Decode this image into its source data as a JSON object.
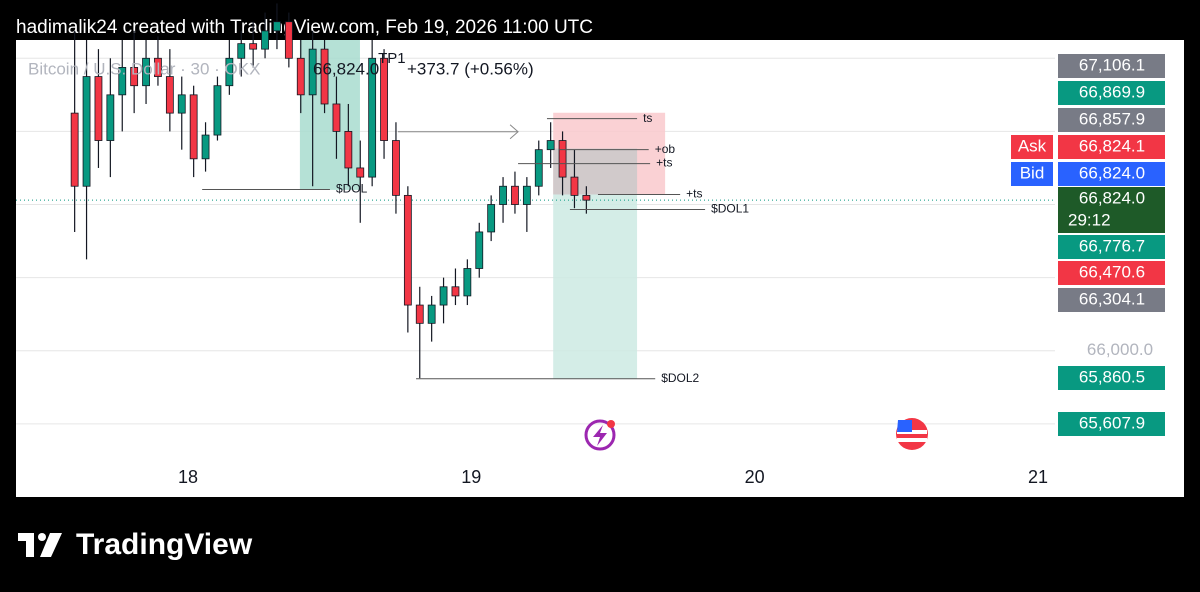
{
  "header": {
    "text": "hadimalik24 created with TradingView.com, Feb 19, 2026 11:00 UTC"
  },
  "chart_data": {
    "type": "candlestick",
    "legend": {
      "symbol": "Bitcoin / U.S. Dollar · 30 · OKX",
      "last": "66,824.0",
      "change": "+373.7 (+0.56%)"
    },
    "x": [
      17.6,
      17.642,
      17.684,
      17.726,
      17.768,
      17.81,
      17.852,
      17.894,
      17.936,
      17.978,
      18.02,
      18.062,
      18.104,
      18.146,
      18.188,
      18.23,
      18.272,
      18.314,
      18.356,
      18.398,
      18.44,
      18.482,
      18.524,
      18.566,
      18.608,
      18.65,
      18.692,
      18.734,
      18.776,
      18.818,
      18.86,
      18.902,
      18.944,
      18.986,
      19.028,
      19.07,
      19.112,
      19.154,
      19.196,
      19.238,
      19.28,
      19.322,
      19.364,
      19.406
    ],
    "open": [
      67300,
      66900,
      67500,
      67150,
      67400,
      67550,
      67450,
      67600,
      67500,
      67300,
      67400,
      67050,
      67180,
      67450,
      67600,
      67680,
      67650,
      67750,
      67800,
      67600,
      67400,
      67650,
      67350,
      67200,
      67000,
      66950,
      67600,
      67150,
      66850,
      66250,
      66150,
      66250,
      66350,
      66300,
      66450,
      66650,
      66800,
      66900,
      66800,
      66900,
      67100,
      67150,
      66950,
      66850
    ],
    "high": [
      67750,
      67700,
      67650,
      67600,
      67700,
      67750,
      67700,
      67720,
      67650,
      67500,
      67450,
      67250,
      67500,
      67700,
      67750,
      67800,
      67850,
      67900,
      67850,
      67700,
      67750,
      67700,
      67500,
      67350,
      67150,
      67700,
      67650,
      67250,
      66900,
      66350,
      66300,
      66400,
      66450,
      66500,
      66700,
      66850,
      66950,
      66980,
      66950,
      67150,
      67250,
      67200,
      67100,
      66900
    ],
    "low": [
      66650,
      66500,
      67000,
      66950,
      67200,
      67300,
      67350,
      67450,
      67200,
      67100,
      66950,
      66980,
      67150,
      67400,
      67500,
      67550,
      67600,
      67650,
      67550,
      67300,
      66900,
      67300,
      67050,
      66900,
      66700,
      66900,
      67050,
      66750,
      66100,
      65850,
      66050,
      66150,
      66250,
      66250,
      66400,
      66600,
      66700,
      66750,
      66650,
      66850,
      67000,
      66850,
      66780,
      66750
    ],
    "close": [
      66900,
      67500,
      67150,
      67400,
      67550,
      67450,
      67600,
      67500,
      67300,
      67400,
      67050,
      67180,
      67450,
      67600,
      67680,
      67650,
      67750,
      67800,
      67600,
      67400,
      67650,
      67350,
      67200,
      67000,
      66950,
      67600,
      67150,
      66850,
      66250,
      66150,
      66250,
      66350,
      66300,
      66450,
      66650,
      66800,
      66900,
      66800,
      66900,
      67100,
      67150,
      66950,
      66850,
      66824
    ],
    "up_color": "#089981",
    "down_color": "#f23645",
    "xlim": [
      17.393,
      21.06
    ],
    "xticks": [
      18,
      19,
      20,
      21
    ],
    "ylim": [
      65200,
      67700
    ],
    "yticks": [
      {
        "value": 66000,
        "label": "66,000.0"
      }
    ],
    "ygrid": [
      65600,
      66000,
      66400,
      66800,
      67200,
      67600
    ],
    "last_price": 66824,
    "zones": [
      {
        "color": "#a8dccf",
        "x": [
          18.395,
          18.607
        ],
        "y": [
          66880,
          67700
        ]
      },
      {
        "color": "#f9c9cd",
        "x": [
          19.289,
          19.684
        ],
        "y": [
          66855,
          67302
        ]
      },
      {
        "color": "#c9c9c9",
        "x": [
          19.289,
          19.585
        ],
        "y": [
          66855,
          67106
        ]
      },
      {
        "color": "#cdeae3",
        "x": [
          19.289,
          19.585
        ],
        "y": [
          65847,
          66855
        ]
      }
    ],
    "lines": [
      {
        "label": "ts",
        "price": 67270,
        "x": [
          19.267,
          19.585
        ]
      },
      {
        "label": "+ob",
        "price": 67100,
        "x": [
          19.31,
          19.626
        ]
      },
      {
        "label": "+ts",
        "price": 67024,
        "x": [
          19.165,
          19.631
        ]
      },
      {
        "label": "+ts",
        "price": 66855,
        "x": [
          19.447,
          19.737
        ]
      },
      {
        "label": "$DOL1",
        "price": 66773,
        "x": [
          19.348,
          19.825
        ]
      },
      {
        "label": "$DOL2",
        "price": 65847,
        "x": [
          18.805,
          19.649
        ]
      },
      {
        "label": "$DOL",
        "price": 66882,
        "x": [
          18.05,
          18.501
        ]
      }
    ],
    "arrow": {
      "price": 67198,
      "x": [
        18.741,
        19.165
      ]
    },
    "annotation": {
      "text": "TP1",
      "x": 18.671,
      "price": 67596
    },
    "price_labels": [
      {
        "label": "67,106.1",
        "color": "#787b86"
      },
      {
        "label": "66,869.9",
        "color": "#089981"
      },
      {
        "label": "66,857.9",
        "color": "#787b86"
      },
      {
        "tag": "Ask",
        "label": "66,824.1",
        "color": "#f23645"
      },
      {
        "tag": "Bid",
        "label": "66,824.0",
        "color": "#2962ff"
      },
      {
        "label": "66,824.0",
        "countdown": "29:12",
        "color": "#1e5a28"
      },
      {
        "label": "66,776.7",
        "color": "#089981"
      },
      {
        "label": "66,470.6",
        "color": "#f23645"
      },
      {
        "label": "66,304.1",
        "color": "#787b86"
      },
      {
        "label": "65,860.5",
        "color": "#089981"
      },
      {
        "label": "65,607.9",
        "color": "#089981"
      }
    ]
  },
  "footer": {
    "brand": "TradingView"
  }
}
